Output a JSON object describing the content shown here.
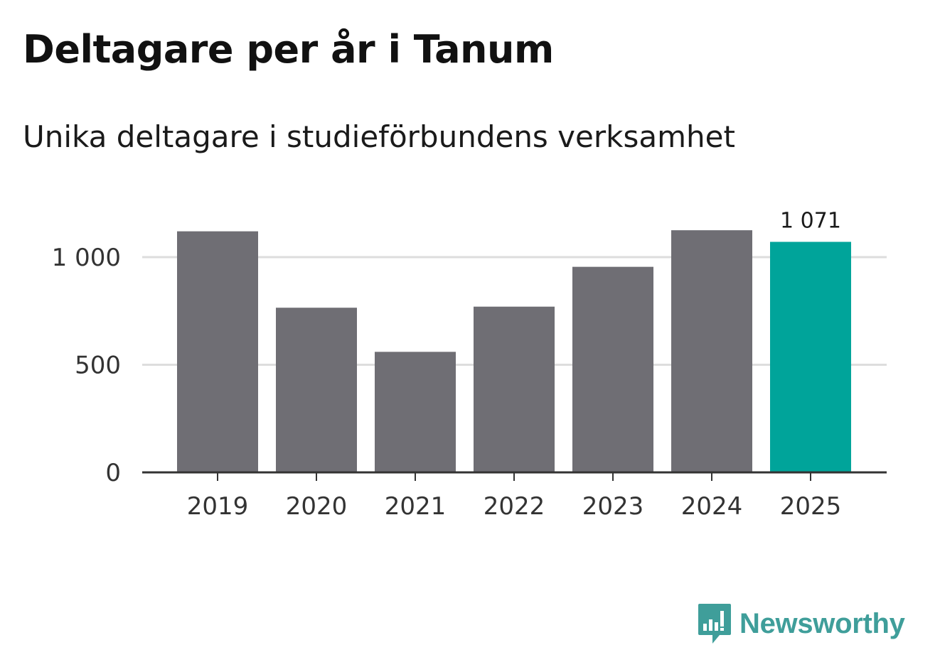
{
  "title": "Deltagare per år i Tanum",
  "subtitle": "Unika deltagare i studieförbundens verksamhet",
  "brand": {
    "name": "Newsworthy",
    "color": "#3f9e9a",
    "icon": "newsworthy-logo-icon"
  },
  "chart_data": {
    "type": "bar",
    "categories": [
      "2019",
      "2020",
      "2021",
      "2022",
      "2023",
      "2024",
      "2025"
    ],
    "values": [
      1120,
      765,
      560,
      770,
      955,
      1125,
      1071
    ],
    "ylim": [
      0,
      1150
    ],
    "yticks": [
      0,
      500,
      1000
    ],
    "ytick_labels": [
      "0",
      "500",
      "1 000"
    ],
    "bar_color": "#6f6e74",
    "highlight_color": "#00a49a",
    "highlight_index": 6,
    "value_labels": [
      {
        "index": 6,
        "text": "1 071"
      }
    ],
    "grid": true,
    "xlabel": "",
    "ylabel": ""
  }
}
